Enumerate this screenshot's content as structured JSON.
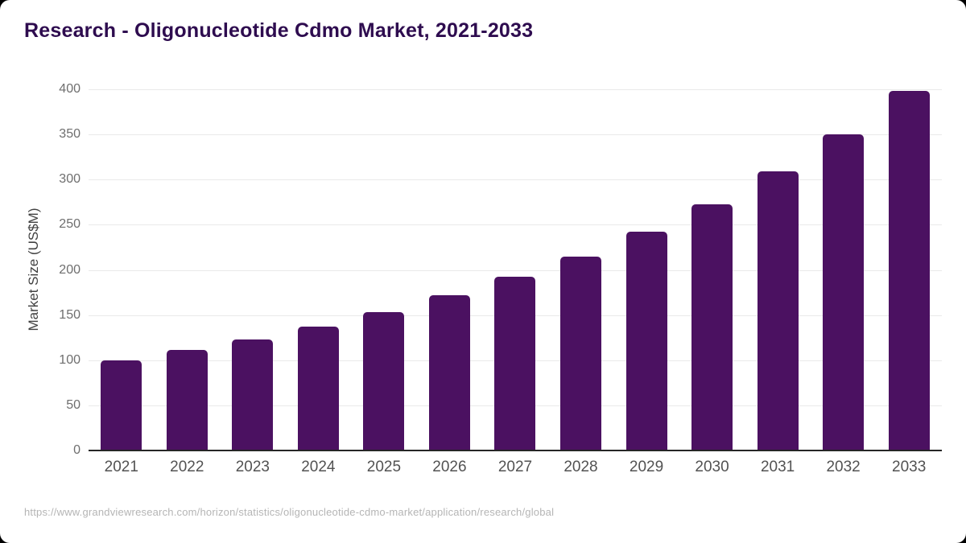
{
  "header": {
    "title": "Research - Oligonucleotide Cdmo Market, 2021-2033"
  },
  "footer": {
    "source_url": "https://www.grandviewresearch.com/horizon/statistics/oligonucleotide-cdmo-market/application/research/global"
  },
  "colors": {
    "bar": "#4b1161",
    "title": "#2e0c4f",
    "gridline": "#e9e9e9",
    "axis_line": "#262626",
    "ytick_label": "#6e6e6e",
    "xtick_label": "#525252",
    "yaxis_title": "#414141",
    "footer_text": "#b5b5b5",
    "card_background": "#ffffff",
    "window_background": "#000000"
  },
  "chart_data": {
    "type": "bar",
    "title": "Research - Oligonucleotide Cdmo Market, 2021-2033",
    "categories": [
      "2021",
      "2022",
      "2023",
      "2024",
      "2025",
      "2026",
      "2027",
      "2028",
      "2029",
      "2030",
      "2031",
      "2032",
      "2033"
    ],
    "values": [
      100,
      111,
      123,
      137,
      153,
      172,
      192,
      215,
      242,
      273,
      309,
      350,
      398
    ],
    "xlabel": "",
    "ylabel": "Market Size (US$M)",
    "ylim": [
      0,
      400
    ],
    "ytick_step": 50,
    "yticks": [
      0,
      50,
      100,
      150,
      200,
      250,
      300,
      350,
      400
    ],
    "grid": true,
    "legend": false,
    "bar_color": "#4b1161"
  }
}
